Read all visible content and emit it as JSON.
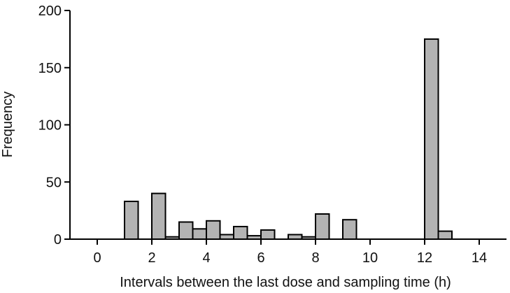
{
  "chart_data": {
    "type": "bar",
    "title": "",
    "xlabel": "Intervals between the last dose and sampling time (h)",
    "ylabel": "Frequency",
    "xlim": [
      -1,
      15
    ],
    "ylim": [
      0,
      200
    ],
    "xticks": [
      0,
      2,
      4,
      6,
      8,
      10,
      12,
      14
    ],
    "yticks": [
      0,
      50,
      100,
      150,
      200
    ],
    "grid": false,
    "legend": "none",
    "bin_width": 0.5,
    "bar_color": "#b3b3b3",
    "bins": [
      {
        "x0": 1.0,
        "value": 33
      },
      {
        "x0": 2.0,
        "value": 40
      },
      {
        "x0": 2.5,
        "value": 2
      },
      {
        "x0": 3.0,
        "value": 15
      },
      {
        "x0": 3.5,
        "value": 9
      },
      {
        "x0": 4.0,
        "value": 16
      },
      {
        "x0": 4.5,
        "value": 4
      },
      {
        "x0": 5.0,
        "value": 11
      },
      {
        "x0": 5.5,
        "value": 3
      },
      {
        "x0": 6.0,
        "value": 8
      },
      {
        "x0": 7.0,
        "value": 4
      },
      {
        "x0": 7.5,
        "value": 2
      },
      {
        "x0": 8.0,
        "value": 22
      },
      {
        "x0": 9.0,
        "value": 17
      },
      {
        "x0": 12.0,
        "value": 175
      },
      {
        "x0": 12.5,
        "value": 7
      }
    ]
  }
}
